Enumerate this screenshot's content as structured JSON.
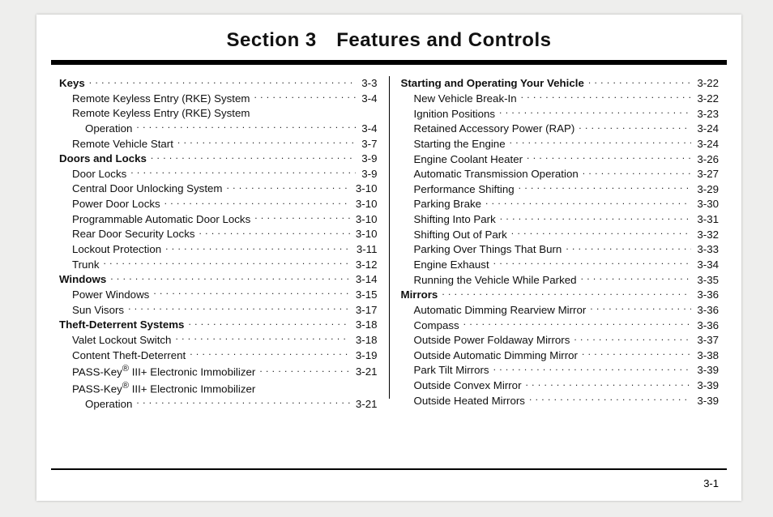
{
  "title": "Section 3 Features and Controls",
  "footer_page": "3-1",
  "left": [
    {
      "bold": true,
      "indent": 0,
      "label": "Keys",
      "page": "3-3"
    },
    {
      "bold": false,
      "indent": 1,
      "label": "Remote Keyless Entry (RKE) System",
      "page": "3-4"
    },
    {
      "bold": false,
      "indent": 1,
      "label": "Remote Keyless Entry (RKE) System",
      "wrap": true
    },
    {
      "bold": false,
      "indent": 2,
      "label": "Operation",
      "page": "3-4"
    },
    {
      "bold": false,
      "indent": 1,
      "label": "Remote Vehicle Start",
      "page": "3-7"
    },
    {
      "bold": true,
      "indent": 0,
      "label": "Doors and Locks",
      "page": "3-9"
    },
    {
      "bold": false,
      "indent": 1,
      "label": "Door Locks",
      "page": "3-9"
    },
    {
      "bold": false,
      "indent": 1,
      "label": "Central Door Unlocking System",
      "page": "3-10"
    },
    {
      "bold": false,
      "indent": 1,
      "label": "Power Door Locks",
      "page": "3-10"
    },
    {
      "bold": false,
      "indent": 1,
      "label": "Programmable Automatic Door Locks",
      "page": "3-10"
    },
    {
      "bold": false,
      "indent": 1,
      "label": "Rear Door Security Locks",
      "page": "3-10"
    },
    {
      "bold": false,
      "indent": 1,
      "label": "Lockout Protection",
      "page": "3-11"
    },
    {
      "bold": false,
      "indent": 1,
      "label": "Trunk",
      "page": "3-12"
    },
    {
      "bold": true,
      "indent": 0,
      "label": "Windows",
      "page": "3-14"
    },
    {
      "bold": false,
      "indent": 1,
      "label": "Power Windows",
      "page": "3-15"
    },
    {
      "bold": false,
      "indent": 1,
      "label": "Sun Visors",
      "page": "3-17"
    },
    {
      "bold": true,
      "indent": 0,
      "label": "Theft-Deterrent Systems",
      "page": "3-18"
    },
    {
      "bold": false,
      "indent": 1,
      "label": "Valet Lockout Switch",
      "page": "3-18"
    },
    {
      "bold": false,
      "indent": 1,
      "label": "Content Theft-Deterrent",
      "page": "3-19"
    },
    {
      "bold": false,
      "indent": 1,
      "label": "PASS-Key<sup>®</sup> III+ Electronic Immobilizer",
      "page": "3-21",
      "html": true
    },
    {
      "bold": false,
      "indent": 1,
      "label": "PASS-Key<sup>®</sup> III+ Electronic Immobilizer",
      "wrap": true,
      "html": true
    },
    {
      "bold": false,
      "indent": 2,
      "label": "Operation",
      "page": "3-21"
    }
  ],
  "right": [
    {
      "bold": true,
      "indent": 0,
      "label": "Starting and Operating Your Vehicle",
      "page": "3-22"
    },
    {
      "bold": false,
      "indent": 1,
      "label": "New Vehicle Break-In",
      "page": "3-22"
    },
    {
      "bold": false,
      "indent": 1,
      "label": "Ignition Positions",
      "page": "3-23"
    },
    {
      "bold": false,
      "indent": 1,
      "label": "Retained Accessory Power (RAP)",
      "page": "3-24"
    },
    {
      "bold": false,
      "indent": 1,
      "label": "Starting the Engine",
      "page": "3-24"
    },
    {
      "bold": false,
      "indent": 1,
      "label": "Engine Coolant Heater",
      "page": "3-26"
    },
    {
      "bold": false,
      "indent": 1,
      "label": "Automatic Transmission Operation",
      "page": "3-27"
    },
    {
      "bold": false,
      "indent": 1,
      "label": "Performance Shifting",
      "page": "3-29"
    },
    {
      "bold": false,
      "indent": 1,
      "label": "Parking Brake",
      "page": "3-30"
    },
    {
      "bold": false,
      "indent": 1,
      "label": "Shifting Into Park",
      "page": "3-31"
    },
    {
      "bold": false,
      "indent": 1,
      "label": "Shifting Out of Park",
      "page": "3-32"
    },
    {
      "bold": false,
      "indent": 1,
      "label": "Parking Over Things That Burn",
      "page": "3-33"
    },
    {
      "bold": false,
      "indent": 1,
      "label": "Engine Exhaust",
      "page": "3-34"
    },
    {
      "bold": false,
      "indent": 1,
      "label": "Running the Vehicle While Parked",
      "page": "3-35"
    },
    {
      "bold": true,
      "indent": 0,
      "label": "Mirrors",
      "page": "3-36"
    },
    {
      "bold": false,
      "indent": 1,
      "label": "Automatic Dimming Rearview Mirror",
      "page": "3-36"
    },
    {
      "bold": false,
      "indent": 1,
      "label": "Compass",
      "page": "3-36"
    },
    {
      "bold": false,
      "indent": 1,
      "label": "Outside Power Foldaway Mirrors",
      "page": "3-37"
    },
    {
      "bold": false,
      "indent": 1,
      "label": "Outside Automatic Dimming Mirror",
      "page": "3-38"
    },
    {
      "bold": false,
      "indent": 1,
      "label": "Park Tilt Mirrors",
      "page": "3-39"
    },
    {
      "bold": false,
      "indent": 1,
      "label": "Outside Convex Mirror",
      "page": "3-39"
    },
    {
      "bold": false,
      "indent": 1,
      "label": "Outside Heated Mirrors",
      "page": "3-39"
    }
  ]
}
